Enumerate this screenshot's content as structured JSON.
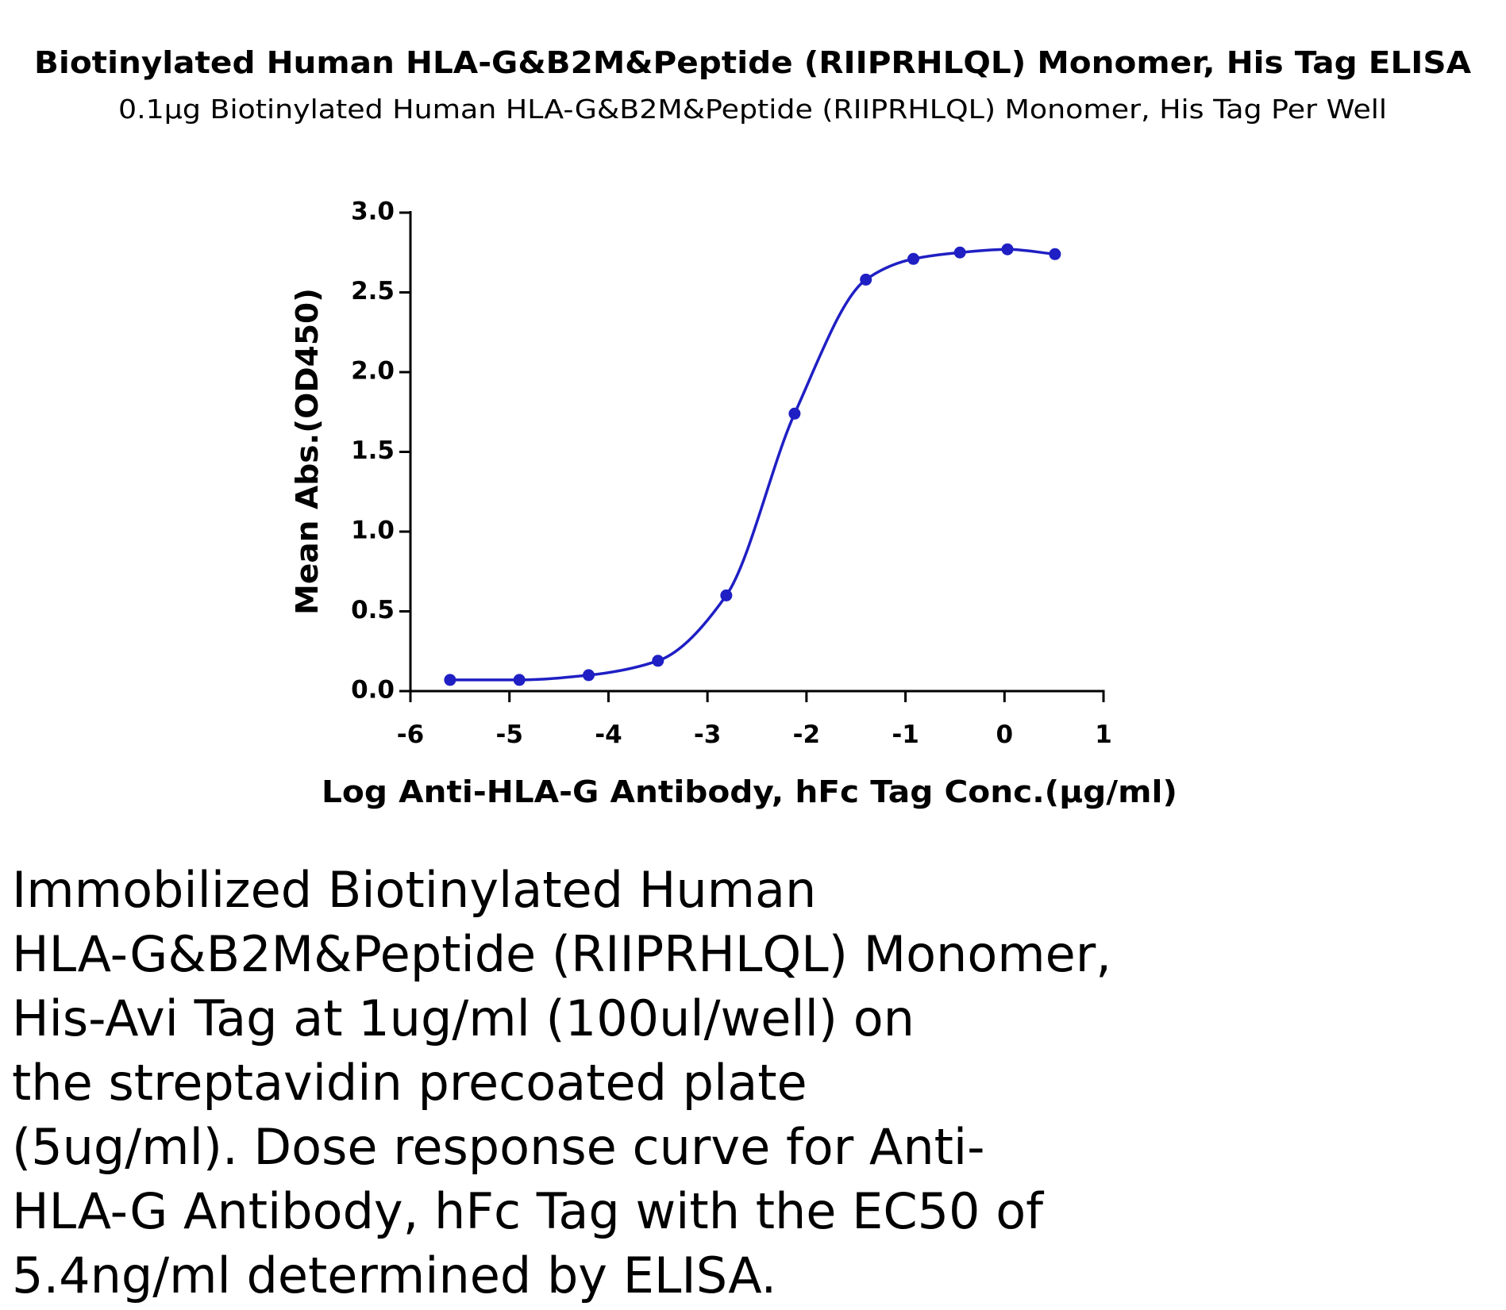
{
  "chart_data": {
    "type": "scatter",
    "title": "Biotinylated Human HLA-G&B2M&Peptide (RIIPRHLQL) Monomer, His Tag ELISA",
    "subtitle": "0.1µg Biotinylated Human HLA-G&B2M&Peptide (RIIPRHLQL) Monomer, His Tag Per Well",
    "x_label": "Log Anti-HLA-G Antibody, hFc Tag Conc.(µg/ml)",
    "y_label": "Mean Abs.(OD450)",
    "x": [
      -5.6,
      -4.9,
      -4.2,
      -3.5,
      -2.81,
      -2.12,
      -1.4,
      -0.92,
      -0.45,
      0.03,
      0.51
    ],
    "values": [
      0.07,
      0.07,
      0.1,
      0.19,
      0.6,
      1.74,
      2.58,
      2.71,
      2.75,
      2.77,
      2.74
    ],
    "color": "#1f1fc4",
    "xlim": [
      -6,
      1
    ],
    "xticks": [
      -6,
      -5,
      -4,
      -3,
      -2,
      -1,
      0,
      1
    ],
    "ylim": [
      0,
      3
    ],
    "yticks": [
      {
        "value": 0,
        "label": "0.0"
      },
      {
        "value": 0.5,
        "label": "0.5"
      },
      {
        "value": 1,
        "label": "1.0"
      },
      {
        "value": 1.5,
        "label": "1.5"
      },
      {
        "value": 2,
        "label": "2.0"
      },
      {
        "value": 2.5,
        "label": "2.5"
      },
      {
        "value": 3,
        "label": "3.0"
      }
    ],
    "grid": false
  },
  "description": [
    "Immobilized Biotinylated Human",
    "HLA-G&B2M&Peptide (RIIPRHLQL) Monomer,",
    "His-Avi Tag at 1ug/ml (100ul/well) on",
    "the streptavidin precoated plate",
    "(5ug/ml). Dose response curve for Anti-",
    "HLA-G Antibody, hFc Tag with the EC50 of",
    "5.4ng/ml determined by ELISA."
  ]
}
